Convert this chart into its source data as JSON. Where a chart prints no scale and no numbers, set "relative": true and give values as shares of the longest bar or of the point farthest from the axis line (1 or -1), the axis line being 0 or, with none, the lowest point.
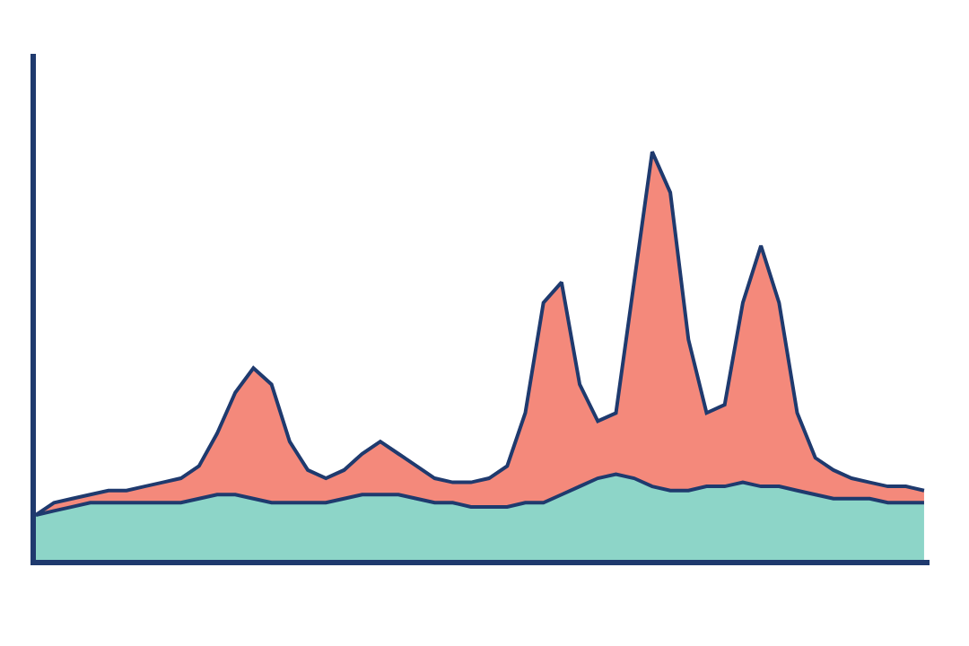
{
  "chart_data": {
    "type": "area",
    "relative": true,
    "stacked": true,
    "categories": [
      null,
      null,
      null,
      null,
      null,
      null,
      null,
      null,
      null,
      null,
      null,
      null,
      null,
      null,
      null,
      null,
      null,
      null,
      null,
      null,
      null,
      null,
      null,
      null,
      null,
      null,
      null,
      null,
      null,
      null,
      null,
      null,
      null,
      null,
      null,
      null,
      null,
      null,
      null,
      null,
      null,
      null,
      null,
      null,
      null,
      null,
      null,
      null,
      null,
      null
    ],
    "series": [
      {
        "color": "#8dd5c8",
        "values": [
          0.11,
          0.12,
          0.13,
          0.14,
          0.14,
          0.14,
          0.14,
          0.14,
          0.14,
          0.15,
          0.16,
          0.16,
          0.15,
          0.14,
          0.14,
          0.14,
          0.14,
          0.15,
          0.16,
          0.16,
          0.16,
          0.15,
          0.14,
          0.14,
          0.13,
          0.13,
          0.13,
          0.14,
          0.14,
          0.16,
          0.18,
          0.2,
          0.21,
          0.2,
          0.18,
          0.17,
          0.17,
          0.18,
          0.18,
          0.19,
          0.18,
          0.18,
          0.17,
          0.16,
          0.15,
          0.15,
          0.15,
          0.14,
          0.14,
          0.14
        ]
      },
      {
        "color": "#f4897b",
        "values": [
          0,
          0.02,
          0.02,
          0.02,
          0.03,
          0.03,
          0.04,
          0.05,
          0.06,
          0.08,
          0.15,
          0.25,
          0.32,
          0.29,
          0.15,
          0.08,
          0.06,
          0.07,
          0.1,
          0.13,
          0.1,
          0.08,
          0.06,
          0.05,
          0.06,
          0.07,
          0.1,
          0.22,
          0.49,
          0.52,
          0.25,
          0.14,
          0.15,
          0.48,
          0.82,
          0.73,
          0.37,
          0.18,
          0.2,
          0.44,
          0.59,
          0.45,
          0.19,
          0.09,
          0.07,
          0.05,
          0.04,
          0.04,
          0.04,
          0.03
        ]
      }
    ],
    "line_style": "solid"
  }
}
